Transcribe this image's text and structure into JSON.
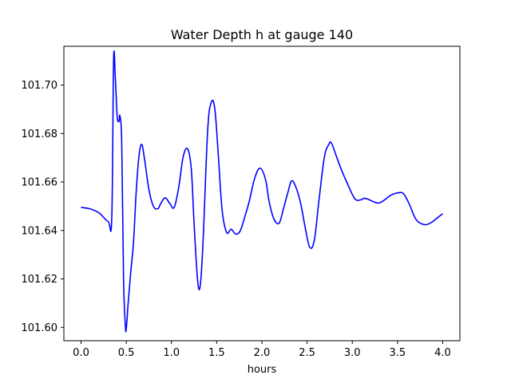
{
  "chart_data": {
    "type": "line",
    "title": "Water Depth h at gauge 140",
    "xlabel": "hours",
    "ylabel": "",
    "xlim": [
      -0.19,
      4.19
    ],
    "ylim": [
      101.5945,
      101.716
    ],
    "xticks": [
      0.0,
      0.5,
      1.0,
      1.5,
      2.0,
      2.5,
      3.0,
      3.5,
      4.0
    ],
    "xtick_labels": [
      "0.0",
      "0.5",
      "1.0",
      "1.5",
      "2.0",
      "2.5",
      "3.0",
      "3.5",
      "4.0"
    ],
    "yticks": [
      101.6,
      101.62,
      101.64,
      101.66,
      101.68,
      101.7
    ],
    "ytick_labels": [
      "101.60",
      "101.62",
      "101.64",
      "101.66",
      "101.68",
      "101.70"
    ],
    "grid": false,
    "legend": "none",
    "series": [
      {
        "color": "#0000ff",
        "x": [
          0.0,
          0.1,
          0.2,
          0.3,
          0.34,
          0.36,
          0.38,
          0.4,
          0.42,
          0.43,
          0.45,
          0.47,
          0.49,
          0.5,
          0.52,
          0.55,
          0.58,
          0.61,
          0.64,
          0.67,
          0.7,
          0.75,
          0.8,
          0.85,
          0.88,
          0.93,
          0.98,
          1.03,
          1.08,
          1.13,
          1.18,
          1.22,
          1.25,
          1.29,
          1.32,
          1.35,
          1.4,
          1.44,
          1.48,
          1.52,
          1.56,
          1.61,
          1.66,
          1.71,
          1.76,
          1.81,
          1.86,
          1.92,
          1.98,
          2.04,
          2.08,
          2.13,
          2.19,
          2.24,
          2.29,
          2.33,
          2.38,
          2.43,
          2.48,
          2.53,
          2.58,
          2.63,
          2.69,
          2.74,
          2.77,
          2.83,
          2.88,
          2.95,
          3.03,
          3.1,
          3.13,
          3.18,
          3.23,
          3.29,
          3.35,
          3.43,
          3.52,
          3.57,
          3.63,
          3.7,
          3.77,
          3.83,
          3.89,
          3.96,
          4.0
        ],
        "y": [
          101.6495,
          101.6489,
          101.6472,
          101.6437,
          101.6456,
          101.7105,
          101.702,
          101.687,
          101.685,
          101.6872,
          101.676,
          101.62,
          101.6008,
          101.5995,
          101.6095,
          101.623,
          101.635,
          101.656,
          101.6705,
          101.6755,
          101.67,
          101.657,
          101.65,
          101.649,
          101.651,
          101.6535,
          101.6512,
          101.6495,
          101.6578,
          101.6705,
          101.6736,
          101.665,
          101.643,
          101.619,
          101.6178,
          101.636,
          101.681,
          101.6928,
          101.69,
          101.67,
          101.6485,
          101.6392,
          101.6405,
          101.6385,
          101.6398,
          101.6455,
          101.652,
          101.6615,
          101.6657,
          101.661,
          101.652,
          101.645,
          101.643,
          101.6492,
          101.656,
          101.6605,
          101.6575,
          101.651,
          101.641,
          101.633,
          101.636,
          101.652,
          101.67,
          101.6755,
          101.676,
          101.67,
          101.665,
          101.659,
          101.653,
          101.6527,
          101.6533,
          101.6528,
          101.6519,
          101.6513,
          101.6524,
          101.6546,
          101.6556,
          101.655,
          101.6509,
          101.6448,
          101.6427,
          101.6425,
          101.6437,
          101.6458,
          101.6469
        ]
      }
    ]
  }
}
